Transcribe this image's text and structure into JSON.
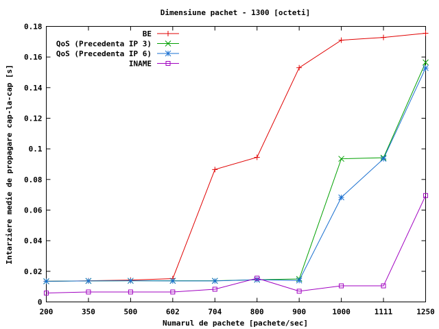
{
  "chart_data": {
    "type": "line",
    "title": "Dimensiune pachet - 1300 [octeti]",
    "xlabel": "Numarul de pachete [pachete/sec]",
    "ylabel": "Intarziere medie de propagare cap-la-cap [s]",
    "categories": [
      "200",
      "350",
      "500",
      "602",
      "704",
      "800",
      "900",
      "1000",
      "1111",
      "1250"
    ],
    "ylim": [
      0,
      0.18
    ],
    "yticks": [
      "0",
      "0.02",
      "0.04",
      "0.06",
      "0.08",
      "0.1",
      "0.12",
      "0.14",
      "0.16",
      "0.18"
    ],
    "grid": false,
    "legend_position": "top-left",
    "series": [
      {
        "name": "BE",
        "color": "#e00000",
        "marker": "plus",
        "values": [
          0.0135,
          0.0138,
          0.0143,
          0.0152,
          0.0865,
          0.0945,
          0.153,
          0.171,
          0.1728,
          0.1755
        ]
      },
      {
        "name": "QoS (Precedenta IP 3)",
        "color": "#00a000",
        "marker": "cross",
        "values": [
          0.0135,
          0.0137,
          0.0138,
          0.0138,
          0.0138,
          0.0145,
          0.015,
          0.0935,
          0.0942,
          0.1565
        ]
      },
      {
        "name": "QoS (Precedenta IP 6)",
        "color": "#1a70d0",
        "marker": "star",
        "values": [
          0.0135,
          0.0137,
          0.0138,
          0.0137,
          0.0137,
          0.0145,
          0.014,
          0.0683,
          0.0935,
          0.1528
        ]
      },
      {
        "name": "INAME",
        "color": "#a000c0",
        "marker": "square",
        "values": [
          0.0058,
          0.0065,
          0.0065,
          0.0065,
          0.0083,
          0.0155,
          0.007,
          0.0105,
          0.0105,
          0.0695
        ]
      }
    ]
  }
}
